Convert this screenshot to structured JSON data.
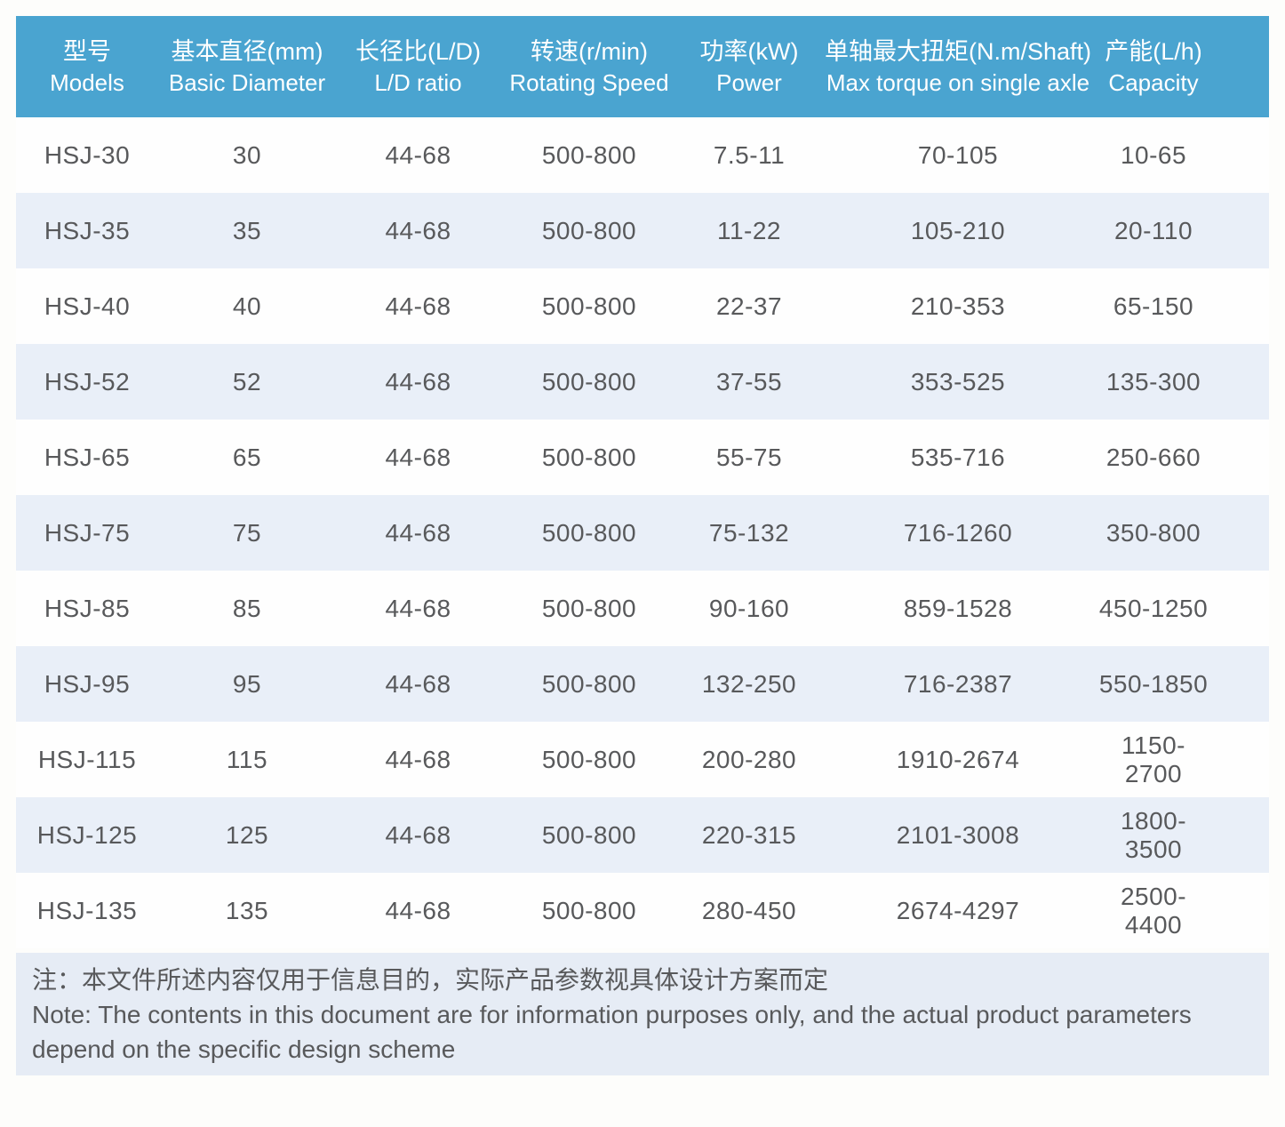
{
  "colors": {
    "header_blue": "#4aa4d0",
    "row_alt": "#e9eff8",
    "note_bg": "#e6ecf5",
    "body_text": "#58595b"
  },
  "table": {
    "columns": [
      {
        "zh": "型号",
        "en": "Models"
      },
      {
        "zh": "基本直径(mm)",
        "en": "Basic Diameter"
      },
      {
        "zh": "长径比(L/D)",
        "en": "L/D ratio"
      },
      {
        "zh": "转速(r/min)",
        "en": "Rotating Speed"
      },
      {
        "zh": "功率(kW)",
        "en": "Power"
      },
      {
        "zh": "单轴最大扭矩(N.m/Shaft)",
        "en": "Max torque on single axle"
      },
      {
        "zh": "产能(L/h)",
        "en": "Capacity"
      }
    ],
    "rows": [
      [
        "HSJ-30",
        "30",
        "44-68",
        "500-800",
        "7.5-11",
        "70-105",
        "10-65"
      ],
      [
        "HSJ-35",
        "35",
        "44-68",
        "500-800",
        "11-22",
        "105-210",
        "20-110"
      ],
      [
        "HSJ-40",
        "40",
        "44-68",
        "500-800",
        "22-37",
        "210-353",
        "65-150"
      ],
      [
        "HSJ-52",
        "52",
        "44-68",
        "500-800",
        "37-55",
        "353-525",
        "135-300"
      ],
      [
        "HSJ-65",
        "65",
        "44-68",
        "500-800",
        "55-75",
        "535-716",
        "250-660"
      ],
      [
        "HSJ-75",
        "75",
        "44-68",
        "500-800",
        "75-132",
        "716-1260",
        "350-800"
      ],
      [
        "HSJ-85",
        "85",
        "44-68",
        "500-800",
        "90-160",
        "859-1528",
        "450-1250"
      ],
      [
        "HSJ-95",
        "95",
        "44-68",
        "500-800",
        "132-250",
        "716-2387",
        "550-1850"
      ],
      [
        "HSJ-115",
        "115",
        "44-68",
        "500-800",
        "200-280",
        "1910-2674",
        "1150-2700"
      ],
      [
        "HSJ-125",
        "125",
        "44-68",
        "500-800",
        "220-315",
        "2101-3008",
        "1800-3500"
      ],
      [
        "HSJ-135",
        "135",
        "44-68",
        "500-800",
        "280-450",
        "2674-4297",
        "2500-4400"
      ]
    ]
  },
  "note": {
    "zh": "注：本文件所述内容仅用于信息目的，实际产品参数视具体设计方案而定",
    "en": "Note: The contents in this document are for information purposes only, and the actual product parameters depend on the specific design scheme"
  }
}
